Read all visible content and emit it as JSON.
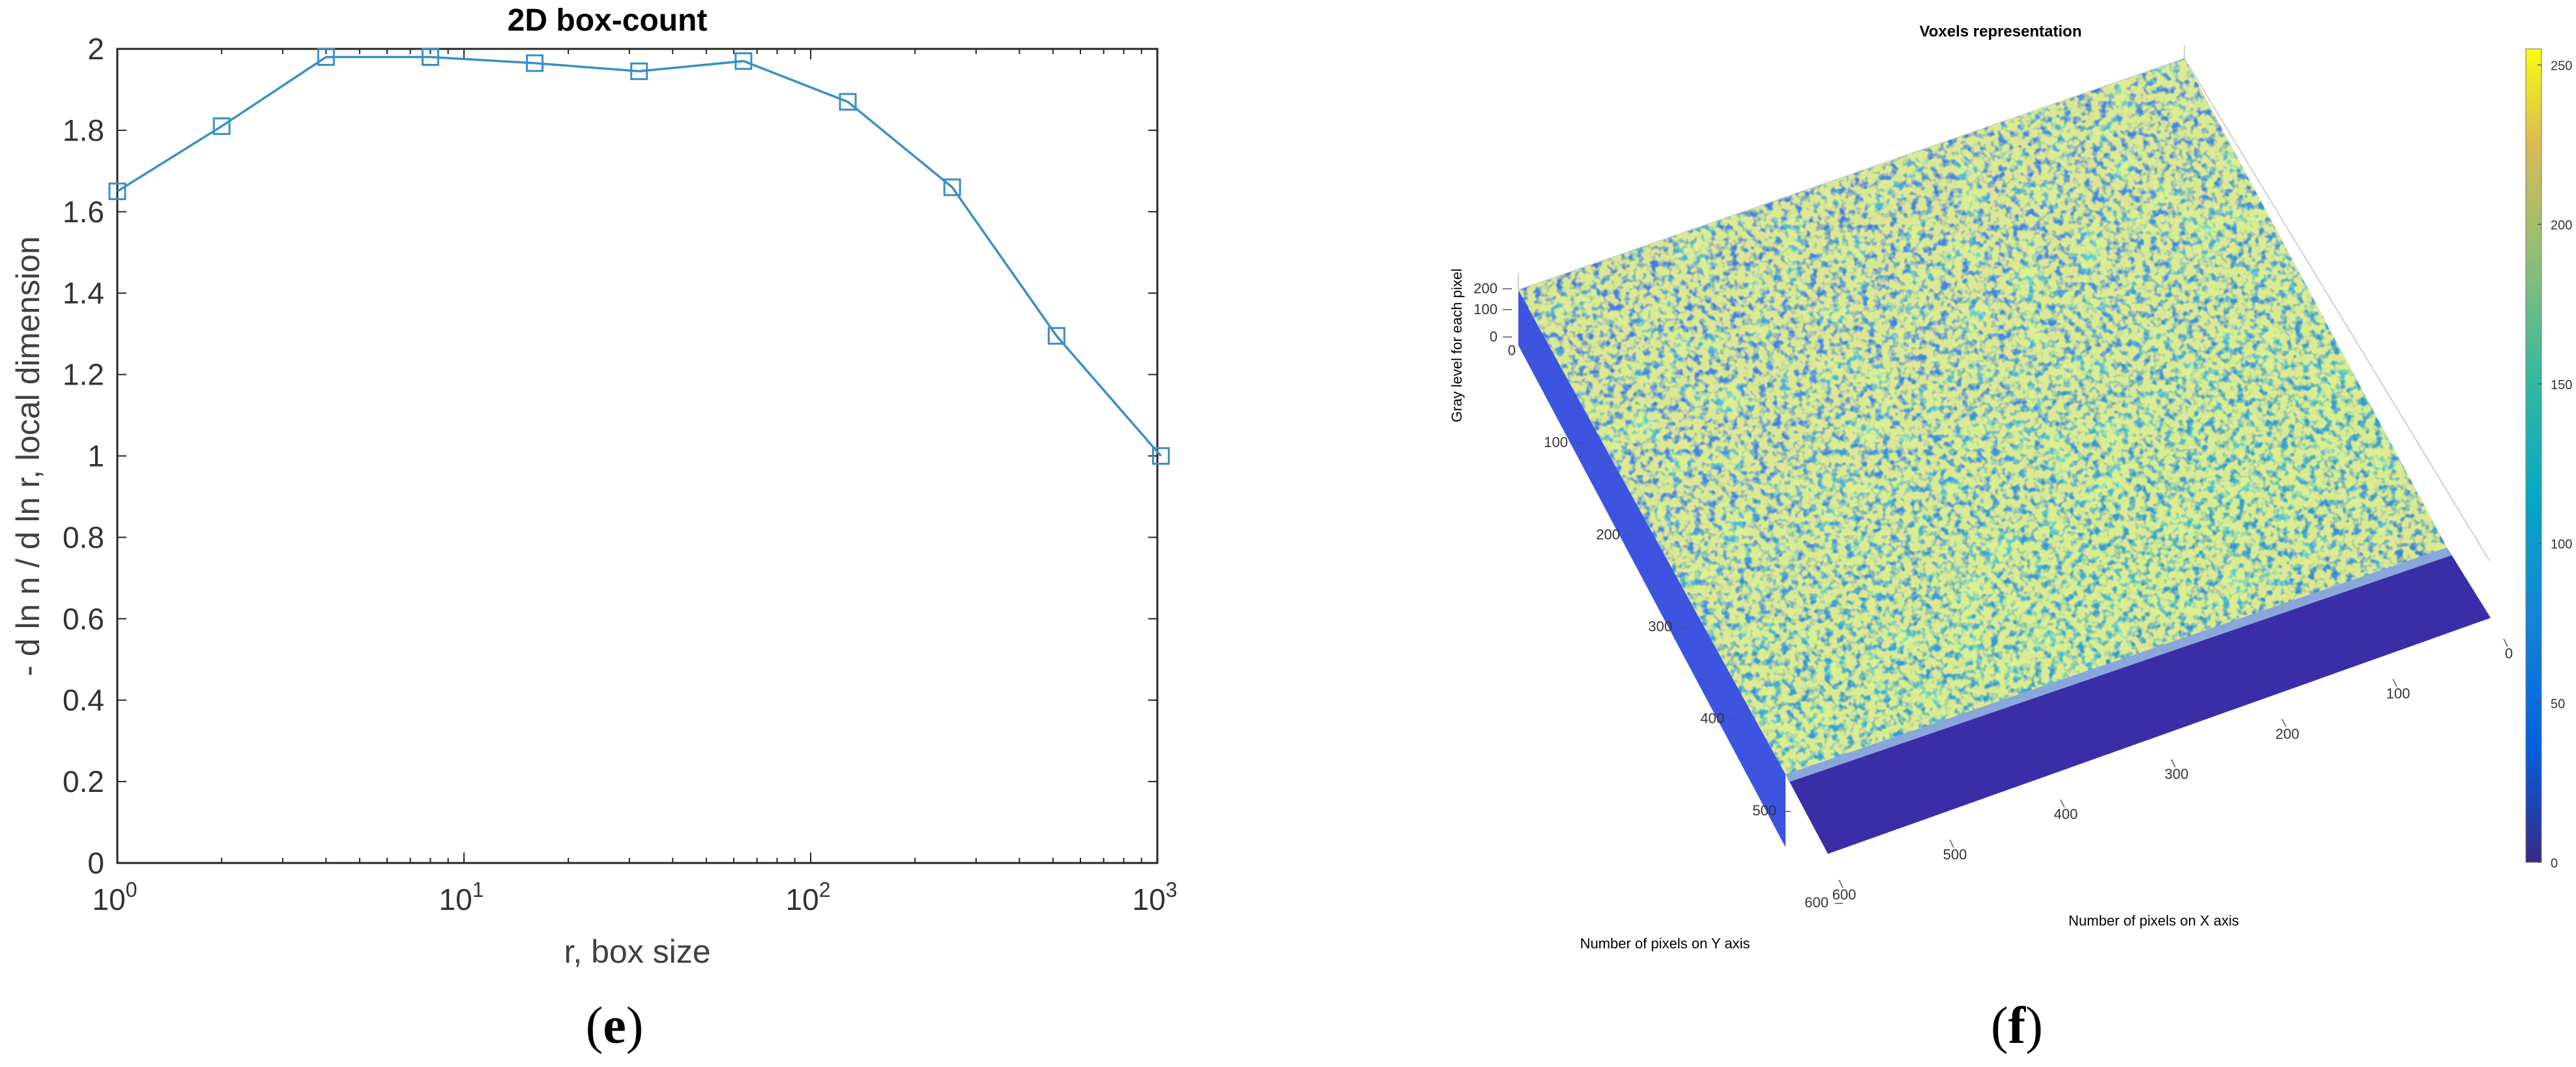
{
  "panel_labels": {
    "e": {
      "open": "(",
      "letter": "e",
      "close": ")"
    },
    "f": {
      "open": "(",
      "letter": "f",
      "close": ")"
    }
  },
  "chart_data": [
    {
      "type": "line",
      "title": "2D box-count",
      "xlabel": "r, box size",
      "ylabel": "- d ln n / d ln r, local dimension",
      "xscale": "log",
      "xlim": [
        1,
        1000
      ],
      "ylim": [
        0,
        2
      ],
      "x_ticks": [
        {
          "base": "10",
          "exp": "0"
        },
        {
          "base": "10",
          "exp": "1"
        },
        {
          "base": "10",
          "exp": "2"
        },
        {
          "base": "10",
          "exp": "3"
        }
      ],
      "y_ticks": [
        "0",
        "0.2",
        "0.4",
        "0.6",
        "0.8",
        "1",
        "1.2",
        "1.4",
        "1.6",
        "1.8",
        "2"
      ],
      "grid": false,
      "marker": "square",
      "color": "#3a8fc4",
      "x": [
        1,
        2,
        4,
        8,
        16,
        32,
        64,
        128,
        256,
        512,
        1024
      ],
      "y": [
        1.65,
        1.81,
        1.98,
        1.98,
        1.965,
        1.945,
        1.97,
        1.87,
        1.66,
        1.295,
        1.0
      ]
    },
    {
      "type": "heatmap",
      "title": "Voxels representation",
      "xlabel": "Number of pixels on X axis",
      "ylabel": "Number of pixels on Y axis",
      "zlabel": "Gray level for each pixel",
      "x_ticks": [
        "0",
        "100",
        "200",
        "300",
        "400",
        "500",
        "600"
      ],
      "y_ticks": [
        "0",
        "100",
        "200",
        "300",
        "400",
        "500",
        "600"
      ],
      "z_ticks": [
        "0",
        "100",
        "200"
      ],
      "colorbar_ticks": [
        "0",
        "50",
        "100",
        "150",
        "200",
        "250"
      ],
      "clim": [
        0,
        255
      ],
      "colormap": "parula"
    }
  ]
}
